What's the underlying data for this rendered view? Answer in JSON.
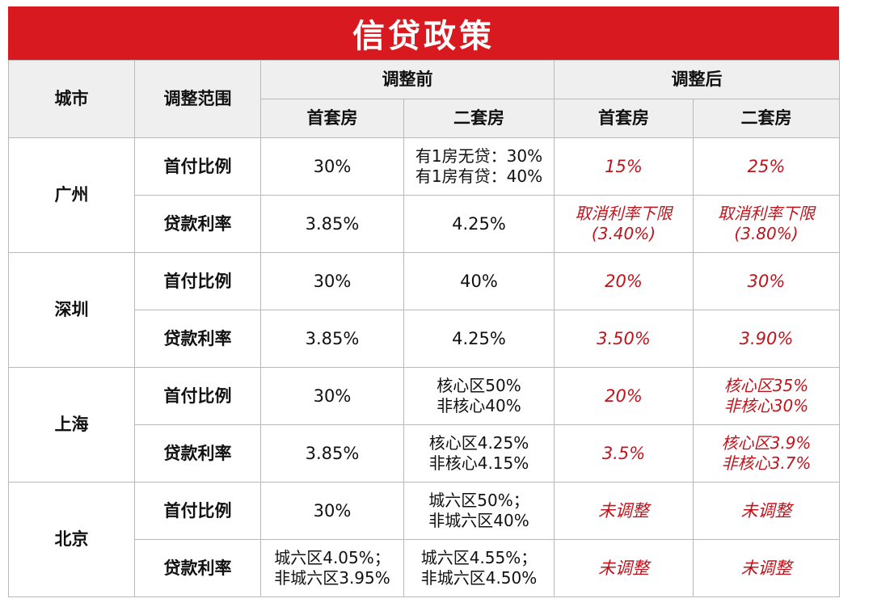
{
  "title": "信贷政策",
  "headers": {
    "city": "城市",
    "scope": "调整范围",
    "before": "调整前",
    "after": "调整后",
    "first_home": "首套房",
    "second_home": "二套房"
  },
  "cities": [
    {
      "name": "广州",
      "rows": [
        {
          "scope": "首付比例",
          "before_first": [
            "30%"
          ],
          "before_second": [
            "有1房无贷：30%",
            "有1房有贷：40%"
          ],
          "after_first": [
            "15%"
          ],
          "after_second": [
            "25%"
          ]
        },
        {
          "scope": "贷款利率",
          "before_first": [
            "3.85%"
          ],
          "before_second": [
            "4.25%"
          ],
          "after_first": [
            "取消利率下限",
            "(3.40%)"
          ],
          "after_second": [
            "取消利率下限",
            "(3.80%)"
          ]
        }
      ]
    },
    {
      "name": "深圳",
      "rows": [
        {
          "scope": "首付比例",
          "before_first": [
            "30%"
          ],
          "before_second": [
            "40%"
          ],
          "after_first": [
            "20%"
          ],
          "after_second": [
            "30%"
          ]
        },
        {
          "scope": "贷款利率",
          "before_first": [
            "3.85%"
          ],
          "before_second": [
            "4.25%"
          ],
          "after_first": [
            "3.50%"
          ],
          "after_second": [
            "3.90%"
          ]
        }
      ]
    },
    {
      "name": "上海",
      "rows": [
        {
          "scope": "首付比例",
          "before_first": [
            "30%"
          ],
          "before_second": [
            "核心区50%",
            "非核心40%"
          ],
          "after_first": [
            "20%"
          ],
          "after_second": [
            "核心区35%",
            "非核心30%"
          ]
        },
        {
          "scope": "贷款利率",
          "before_first": [
            "3.85%"
          ],
          "before_second": [
            "核心区4.25%",
            "非核心4.15%"
          ],
          "after_first": [
            "3.5%"
          ],
          "after_second": [
            "核心区3.9%",
            "非核心3.7%"
          ]
        }
      ]
    },
    {
      "name": "北京",
      "rows": [
        {
          "scope": "首付比例",
          "before_first": [
            "30%"
          ],
          "before_second": [
            "城六区50%；",
            "非城六区40%"
          ],
          "after_first": [
            "未调整"
          ],
          "after_second": [
            "未调整"
          ]
        },
        {
          "scope": "贷款利率",
          "before_first": [
            "城六区4.05%；",
            "非城六区3.95%"
          ],
          "before_second": [
            "城六区4.55%；",
            "非城六区4.50%"
          ],
          "after_first": [
            "未调整"
          ],
          "after_second": [
            "未调整"
          ]
        }
      ]
    }
  ],
  "colors": {
    "title_bg": "#d8191f",
    "after_text": "#c0141c",
    "header_bg": "#efefef"
  }
}
